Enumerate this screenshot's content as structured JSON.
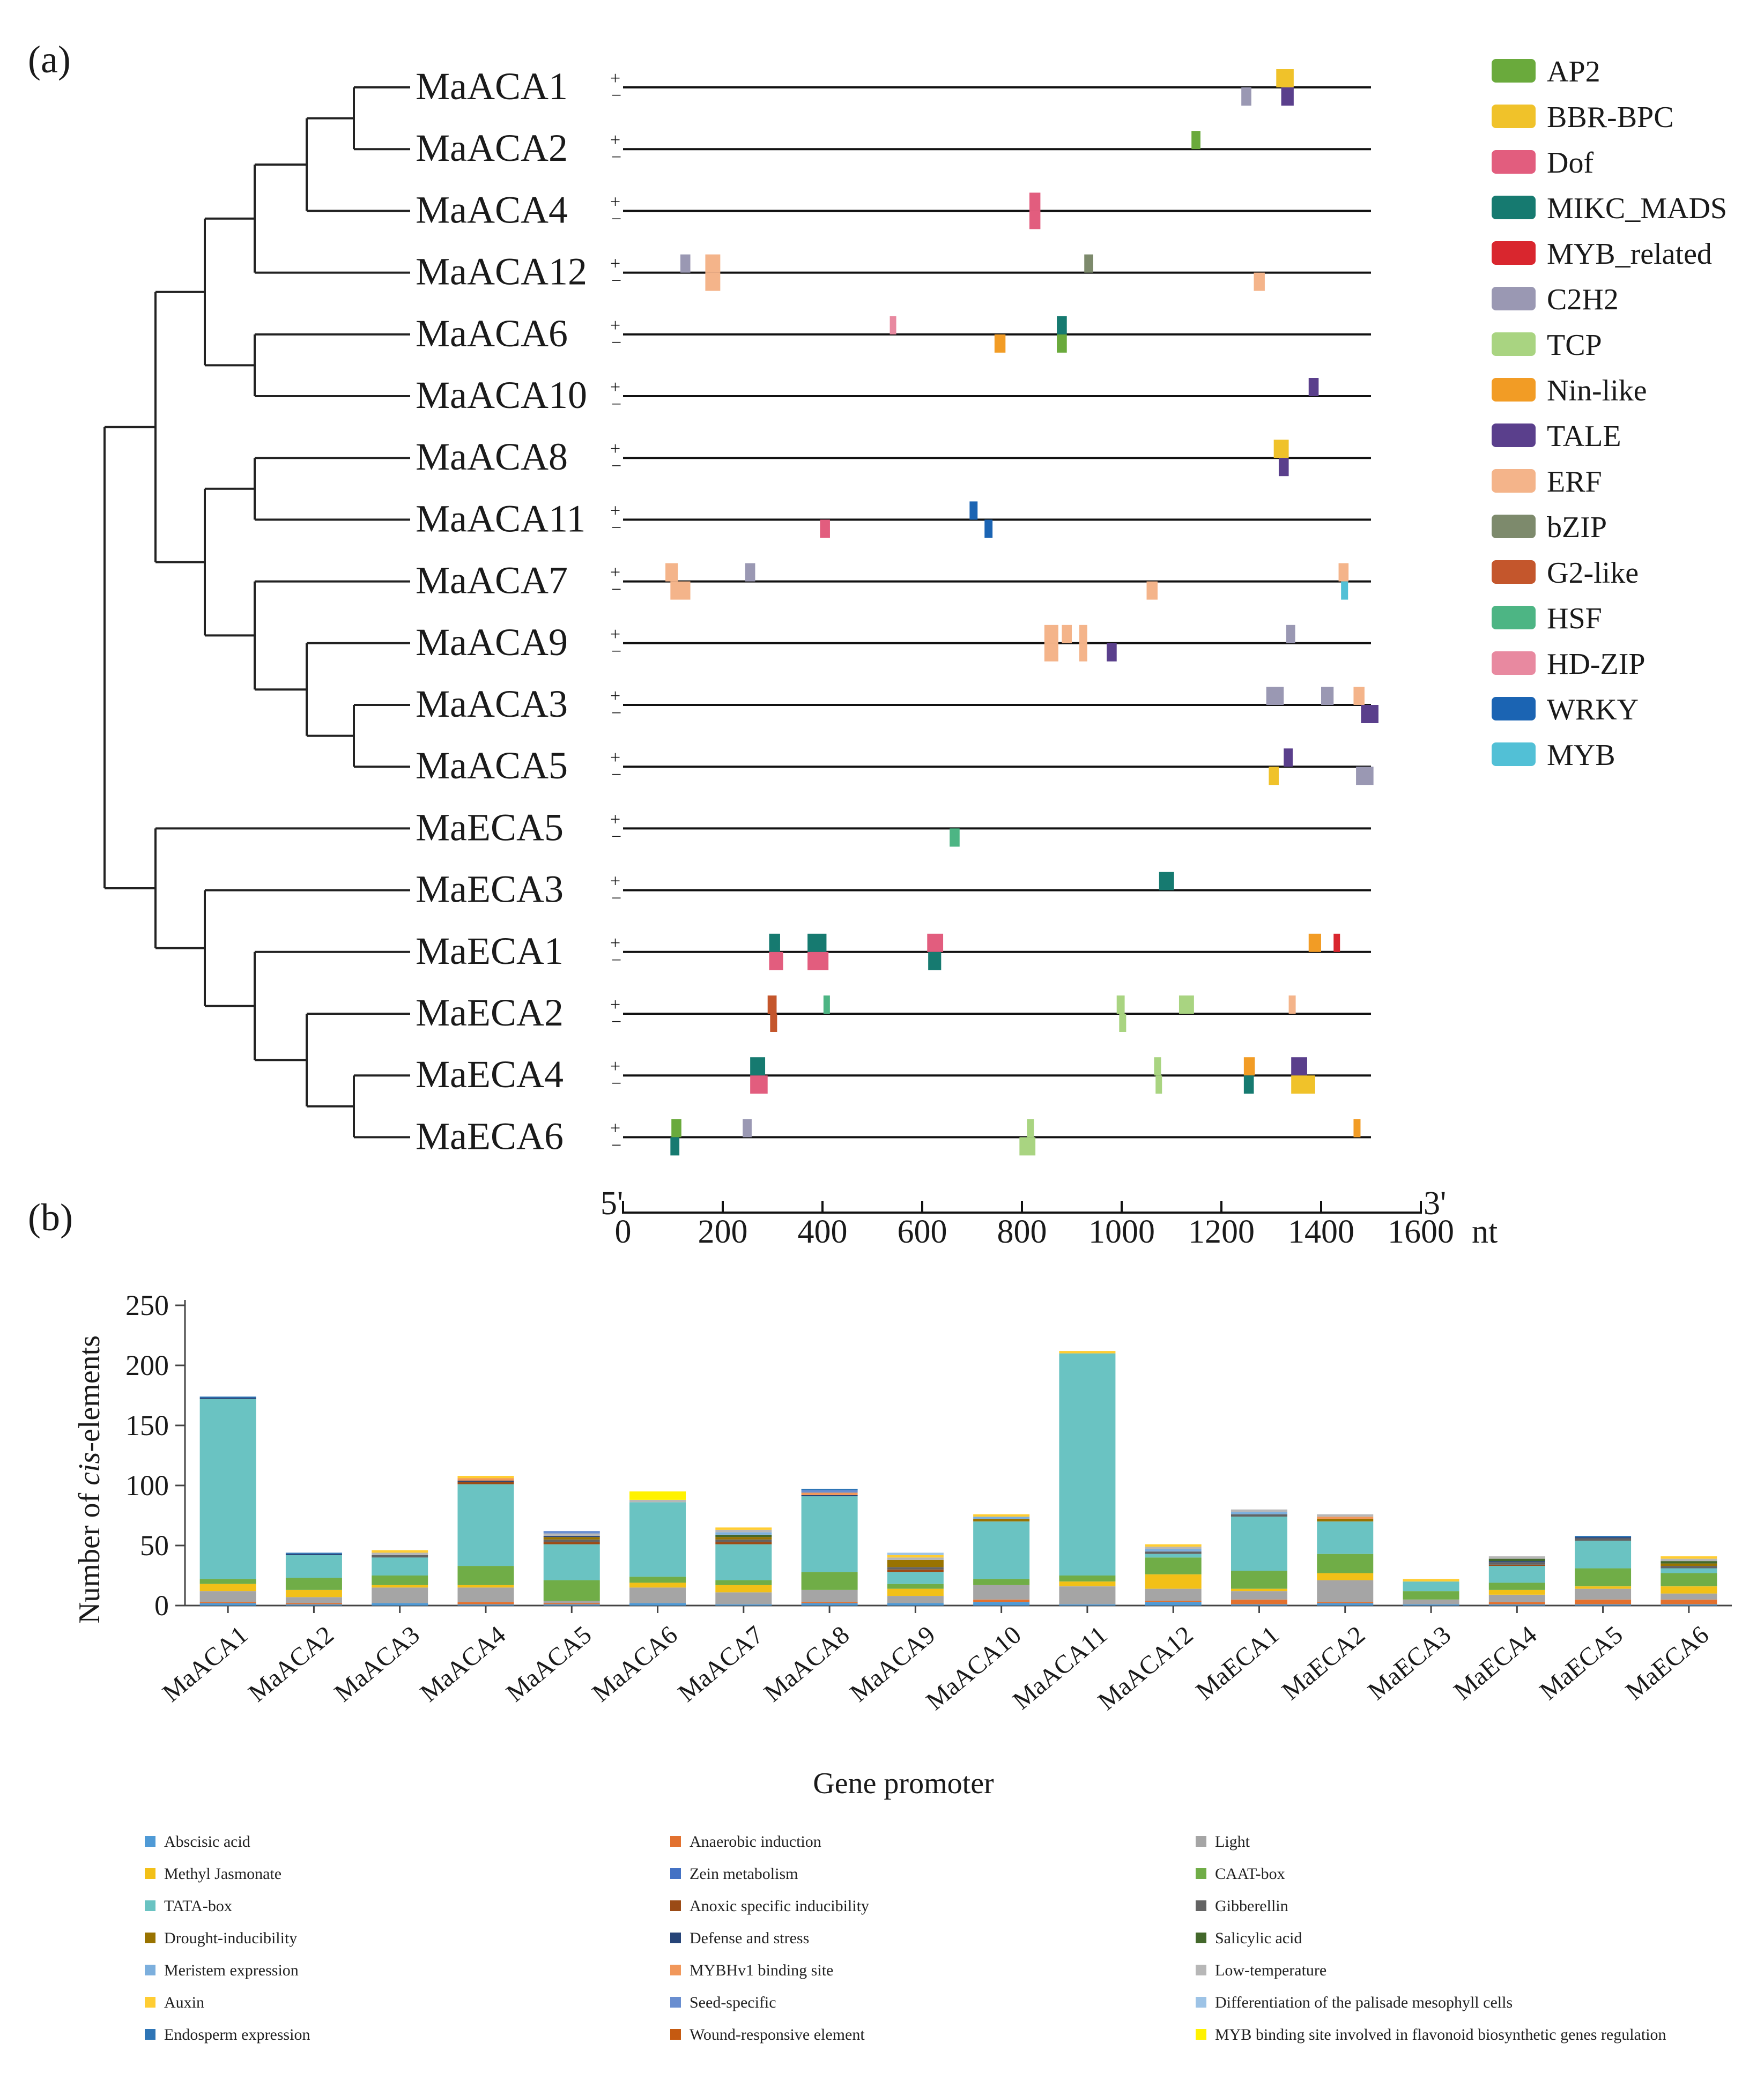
{
  "panel_a": {
    "label": "(a)",
    "genes": [
      "MaACA1",
      "MaACA2",
      "MaACA4",
      "MaACA12",
      "MaACA6",
      "MaACA10",
      "MaACA8",
      "MaACA11",
      "MaACA7",
      "MaACA9",
      "MaACA3",
      "MaACA5",
      "MaECA5",
      "MaECA3",
      "MaECA1",
      "MaECA2",
      "MaECA4",
      "MaECA6"
    ],
    "strand_plus": "+",
    "strand_minus": "−",
    "axis": {
      "five_prime": "5'",
      "three_prime": "3'",
      "unit": "nt",
      "min": 0,
      "max": 1600,
      "ticks": [
        0,
        200,
        400,
        600,
        800,
        1000,
        1200,
        1400,
        1600
      ]
    },
    "gene_length": 1500,
    "legend": [
      {
        "name": "AP2",
        "color": "#6aaa3c"
      },
      {
        "name": "BBR-BPC",
        "color": "#f0c22a"
      },
      {
        "name": "Dof",
        "color": "#e25d7e"
      },
      {
        "name": "MIKC_MADS",
        "color": "#167a70"
      },
      {
        "name": "MYB_related",
        "color": "#d9262e"
      },
      {
        "name": "C2H2",
        "color": "#9a98b3"
      },
      {
        "name": "TCP",
        "color": "#a9d481"
      },
      {
        "name": "Nin-like",
        "color": "#f29c25"
      },
      {
        "name": "TALE",
        "color": "#5a3f8c"
      },
      {
        "name": "ERF",
        "color": "#f4b48a"
      },
      {
        "name": "bZIP",
        "color": "#7d8a6c"
      },
      {
        "name": "G2-like",
        "color": "#c4562c"
      },
      {
        "name": "HSF",
        "color": "#4db584"
      },
      {
        "name": "HD-ZIP",
        "color": "#e889a0"
      },
      {
        "name": "WRKY",
        "color": "#1b64b3"
      },
      {
        "name": "MYB",
        "color": "#52c0d6"
      }
    ],
    "motifs": [
      [
        [
          "BBR-BPC",
          "+",
          1310,
          35
        ],
        [
          "C2H2",
          "-",
          1240,
          20
        ],
        [
          "TALE",
          "-",
          1320,
          25
        ]
      ],
      [
        [
          "AP2",
          "+",
          1140,
          18
        ]
      ],
      [
        [
          "Dof",
          "+",
          815,
          22
        ],
        [
          "Dof",
          "-",
          815,
          22
        ]
      ],
      [
        [
          "C2H2",
          "+",
          115,
          20
        ],
        [
          "ERF",
          "+",
          165,
          30
        ],
        [
          "ERF",
          "-",
          165,
          30
        ],
        [
          "bZIP",
          "+",
          925,
          18
        ],
        [
          "ERF",
          "-",
          1265,
          22
        ]
      ],
      [
        [
          "HD-ZIP",
          "+",
          535,
          12
        ],
        [
          "MIKC_MADS",
          "+",
          870,
          20
        ],
        [
          "Nin-like",
          "-",
          745,
          22
        ],
        [
          "AP2",
          "-",
          870,
          20
        ]
      ],
      [
        [
          "TALE",
          "+",
          1375,
          20
        ]
      ],
      [
        [
          "BBR-BPC",
          "+",
          1305,
          30
        ],
        [
          "TALE",
          "-",
          1315,
          20
        ]
      ],
      [
        [
          "Dof",
          "-",
          395,
          20
        ],
        [
          "WRKY",
          "+",
          695,
          16
        ],
        [
          "WRKY",
          "-",
          725,
          16
        ]
      ],
      [
        [
          "ERF",
          "+",
          85,
          25
        ],
        [
          "ERF",
          "-",
          95,
          40
        ],
        [
          "C2H2",
          "+",
          245,
          20
        ],
        [
          "ERF",
          "-",
          1050,
          22
        ],
        [
          "ERF",
          "+",
          1435,
          20
        ],
        [
          "MYB",
          "-",
          1440,
          14
        ]
      ],
      [
        [
          "ERF",
          "+",
          845,
          28
        ],
        [
          "ERF",
          "-",
          845,
          28
        ],
        [
          "ERF",
          "+",
          880,
          20
        ],
        [
          "ERF",
          "+",
          915,
          16
        ],
        [
          "ERF",
          "-",
          915,
          16
        ],
        [
          "TALE",
          "-",
          970,
          20
        ],
        [
          "C2H2",
          "+",
          1330,
          18
        ]
      ],
      [
        [
          "C2H2",
          "+",
          1290,
          35
        ],
        [
          "C2H2",
          "+",
          1400,
          25
        ],
        [
          "ERF",
          "+",
          1465,
          22
        ],
        [
          "TALE",
          "-",
          1480,
          35
        ]
      ],
      [
        [
          "TALE",
          "+",
          1325,
          18
        ],
        [
          "BBR-BPC",
          "-",
          1295,
          20
        ],
        [
          "C2H2",
          "-",
          1470,
          35
        ]
      ],
      [
        [
          "HSF",
          "-",
          655,
          20
        ]
      ],
      [
        [
          "MIKC_MADS",
          "+",
          1075,
          30
        ]
      ],
      [
        [
          "MIKC_MADS",
          "+",
          293,
          22
        ],
        [
          "Dof",
          "-",
          293,
          28
        ],
        [
          "MIKC_MADS",
          "+",
          370,
          38
        ],
        [
          "Dof",
          "-",
          370,
          42
        ],
        [
          "Dof",
          "+",
          610,
          32
        ],
        [
          "MIKC_MADS",
          "-",
          612,
          26
        ],
        [
          "Nin-like",
          "+",
          1375,
          25
        ],
        [
          "MYB_related",
          "+",
          1425,
          10
        ]
      ],
      [
        [
          "G2-like",
          "+",
          290,
          18
        ],
        [
          "G2-like",
          "-",
          295,
          14
        ],
        [
          "HSF",
          "+",
          402,
          12
        ],
        [
          "TCP",
          "+",
          990,
          16
        ],
        [
          "TCP",
          "-",
          995,
          14
        ],
        [
          "TCP",
          "+",
          1115,
          30
        ],
        [
          "ERF",
          "+",
          1335,
          14
        ]
      ],
      [
        [
          "MIKC_MADS",
          "+",
          255,
          30
        ],
        [
          "Dof",
          "-",
          255,
          35
        ],
        [
          "TCP",
          "+",
          1065,
          14
        ],
        [
          "TCP",
          "-",
          1068,
          12
        ],
        [
          "Nin-like",
          "+",
          1245,
          22
        ],
        [
          "MIKC_MADS",
          "-",
          1245,
          20
        ],
        [
          "TALE",
          "+",
          1340,
          32
        ],
        [
          "BBR-BPC",
          "-",
          1340,
          48
        ]
      ],
      [
        [
          "AP2",
          "+",
          97,
          20
        ],
        [
          "MIKC_MADS",
          "-",
          95,
          18
        ],
        [
          "C2H2",
          "+",
          240,
          18
        ],
        [
          "TCP",
          "+",
          810,
          14
        ],
        [
          "TCP",
          "-",
          795,
          32
        ],
        [
          "Nin-like",
          "+",
          1465,
          14
        ]
      ]
    ]
  },
  "panel_b": {
    "label": "(b)",
    "chart_data": {
      "type": "bar",
      "stacked": true,
      "title": "",
      "xlabel": "Gene promoter",
      "ylabel_pre": "Number of ",
      "ylabel_italic": "cis",
      "ylabel_post": "-elements",
      "ylim": [
        0,
        250
      ],
      "yticks": [
        0,
        50,
        100,
        150,
        200,
        250
      ],
      "categories": [
        "MaACA1",
        "MaACA2",
        "MaACA3",
        "MaACA4",
        "MaACA5",
        "MaACA6",
        "MaACA7",
        "MaACA8",
        "MaACA9",
        "MaACA10",
        "MaACA11",
        "MaACA12",
        "MaECA1",
        "MaECA2",
        "MaECA3",
        "MaECA4",
        "MaECA5",
        "MaECA6"
      ],
      "series": [
        {
          "name": "Abscisic acid",
          "color": "#4f9ad6",
          "values": [
            2,
            1,
            2,
            1,
            1,
            2,
            1,
            2,
            2,
            3,
            1,
            3,
            1,
            2,
            1,
            1,
            1,
            1
          ]
        },
        {
          "name": "Anaerobic induction",
          "color": "#e2712f",
          "values": [
            1,
            1,
            0,
            2,
            1,
            0,
            0,
            1,
            0,
            2,
            0,
            1,
            4,
            1,
            0,
            2,
            4,
            4
          ]
        },
        {
          "name": "Light",
          "color": "#a5a5a5",
          "values": [
            9,
            5,
            13,
            12,
            2,
            13,
            10,
            10,
            6,
            12,
            15,
            10,
            7,
            18,
            4,
            6,
            9,
            5
          ]
        },
        {
          "name": "Methyl Jasmonate",
          "color": "#f2c018",
          "values": [
            6,
            6,
            2,
            2,
            0,
            4,
            6,
            0,
            6,
            0,
            4,
            12,
            2,
            6,
            0,
            4,
            2,
            6
          ]
        },
        {
          "name": "Zein metabolism",
          "color": "#4472c4",
          "values": [
            0,
            0,
            0,
            0,
            0,
            0,
            0,
            0,
            0,
            0,
            0,
            0,
            0,
            0,
            0,
            0,
            0,
            0
          ]
        },
        {
          "name": "CAAT-box",
          "color": "#70ad47",
          "values": [
            4,
            10,
            8,
            16,
            17,
            5,
            4,
            15,
            4,
            5,
            5,
            14,
            15,
            16,
            7,
            6,
            15,
            11
          ]
        },
        {
          "name": "TATA-box",
          "color": "#6ac3c2",
          "values": [
            150,
            19,
            15,
            68,
            30,
            62,
            30,
            63,
            10,
            48,
            185,
            3,
            45,
            27,
            8,
            14,
            23,
            4
          ]
        },
        {
          "name": "Anoxic specific inducibility",
          "color": "#9b4b16",
          "values": [
            0,
            0,
            0,
            2,
            2,
            0,
            2,
            0,
            2,
            0,
            0,
            0,
            0,
            0,
            0,
            1,
            0,
            0
          ]
        },
        {
          "name": "Gibberellin",
          "color": "#636363",
          "values": [
            0,
            0,
            2,
            0,
            2,
            0,
            2,
            0,
            2,
            0,
            0,
            2,
            2,
            0,
            0,
            2,
            2,
            2
          ]
        },
        {
          "name": "Drought-inducibility",
          "color": "#997300",
          "values": [
            0,
            0,
            0,
            0,
            2,
            0,
            2,
            0,
            6,
            2,
            0,
            0,
            0,
            2,
            0,
            0,
            0,
            2
          ]
        },
        {
          "name": "Defense and stress",
          "color": "#264478",
          "values": [
            1,
            1,
            0,
            1,
            1,
            0,
            0,
            1,
            0,
            0,
            0,
            0,
            0,
            0,
            0,
            1,
            1,
            0
          ]
        },
        {
          "name": "Salicylic acid",
          "color": "#43682b",
          "values": [
            0,
            0,
            0,
            0,
            0,
            0,
            2,
            0,
            0,
            0,
            0,
            0,
            0,
            0,
            0,
            2,
            0,
            2
          ]
        },
        {
          "name": "Meristem expression",
          "color": "#7cafdd",
          "values": [
            0,
            0,
            0,
            0,
            0,
            0,
            2,
            0,
            0,
            2,
            0,
            2,
            2,
            0,
            0,
            0,
            0,
            0
          ]
        },
        {
          "name": "MYBHv1 binding site",
          "color": "#f1975a",
          "values": [
            0,
            0,
            0,
            2,
            0,
            0,
            0,
            2,
            0,
            0,
            0,
            0,
            0,
            2,
            0,
            0,
            0,
            0
          ]
        },
        {
          "name": "Low-temperature",
          "color": "#b7b7b7",
          "values": [
            0,
            0,
            2,
            0,
            2,
            2,
            2,
            0,
            2,
            0,
            0,
            2,
            2,
            2,
            0,
            2,
            0,
            2
          ]
        },
        {
          "name": "Auxin",
          "color": "#ffcd33",
          "values": [
            0,
            0,
            2,
            2,
            0,
            0,
            2,
            0,
            2,
            2,
            2,
            2,
            0,
            0,
            2,
            0,
            0,
            2
          ]
        },
        {
          "name": "Seed-specific",
          "color": "#698ed0",
          "values": [
            0,
            0,
            0,
            0,
            2,
            0,
            0,
            2,
            0,
            0,
            0,
            0,
            0,
            0,
            0,
            0,
            0,
            0
          ]
        },
        {
          "name": "Differentiation of the palisade mesophyll cells",
          "color": "#9dc3e6",
          "values": [
            0,
            0,
            0,
            0,
            0,
            0,
            0,
            0,
            2,
            0,
            0,
            0,
            0,
            0,
            0,
            0,
            0,
            0
          ]
        },
        {
          "name": "Endosperm expression",
          "color": "#2e75b6",
          "values": [
            1,
            1,
            0,
            0,
            0,
            0,
            0,
            1,
            0,
            0,
            0,
            0,
            0,
            0,
            0,
            0,
            1,
            0
          ]
        },
        {
          "name": "Wound-responsive element",
          "color": "#c55a11",
          "values": [
            0,
            0,
            0,
            0,
            0,
            0,
            0,
            0,
            0,
            0,
            0,
            0,
            0,
            0,
            0,
            0,
            0,
            0
          ]
        },
        {
          "name": "MYB binding site involved in flavonoid biosynthetic genes regulation",
          "color": "#fff200",
          "values": [
            0,
            0,
            0,
            0,
            0,
            7,
            0,
            0,
            0,
            0,
            0,
            0,
            0,
            0,
            0,
            0,
            0,
            0
          ]
        }
      ]
    },
    "legend_columns": [
      [
        "Abscisic acid",
        "Methyl Jasmonate",
        "TATA-box",
        "Drought-inducibility",
        "Meristem expression",
        "Auxin",
        "Endosperm expression"
      ],
      [
        "Anaerobic induction",
        "Zein metabolism",
        "Anoxic specific inducibility",
        "Defense and stress",
        "MYBHv1 binding site",
        "Seed-specific",
        "Wound-responsive element"
      ],
      [
        "Light",
        "CAAT-box",
        "Gibberellin",
        "Salicylic acid",
        "Low-temperature",
        "Differentiation of the palisade mesophyll cells",
        "MYB binding site involved in flavonoid biosynthetic genes regulation"
      ]
    ]
  }
}
